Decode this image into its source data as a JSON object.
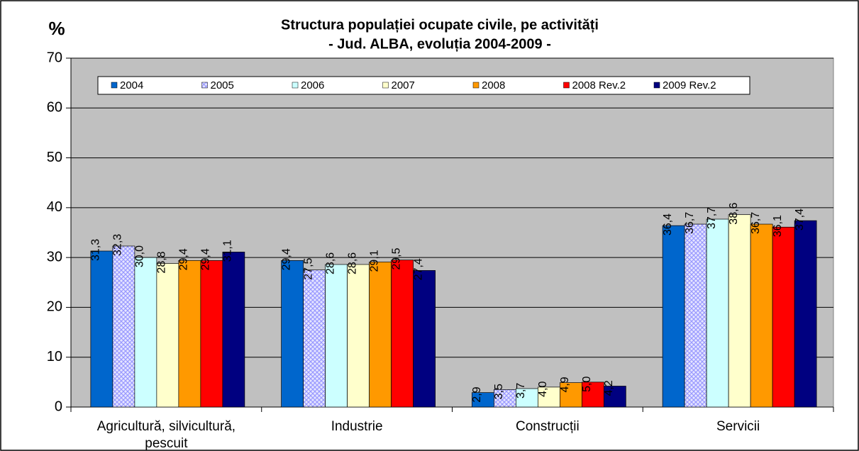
{
  "chart_data": {
    "type": "bar",
    "title": "Structura populației ocupate civile, pe activități",
    "subtitle": "- Jud. ALBA, evoluția 2004-2009 -",
    "y_label": "%",
    "categories": [
      "Agricultură, silvicultură, pescuit",
      "Industrie",
      "Construcții",
      "Servicii"
    ],
    "series": [
      {
        "name": "2004",
        "color": "#0066cc",
        "values": [
          31.3,
          29.4,
          2.9,
          36.4
        ],
        "value_labels": [
          "31,3",
          "29,4",
          "2,9",
          "36,4"
        ]
      },
      {
        "name": "2005",
        "color": "#9999ff",
        "hatch": true,
        "values": [
          32.3,
          27.5,
          3.5,
          36.7
        ],
        "value_labels": [
          "32,3",
          "27,5",
          "3,5",
          "36,7"
        ]
      },
      {
        "name": "2006",
        "color": "#ccffff",
        "values": [
          30.0,
          28.6,
          3.7,
          37.7
        ],
        "value_labels": [
          "30,0",
          "28,6",
          "3,7",
          "37,7"
        ]
      },
      {
        "name": "2007",
        "color": "#ffffcc",
        "values": [
          28.8,
          28.6,
          4.0,
          38.6
        ],
        "value_labels": [
          "28,8",
          "28,6",
          "4,0",
          "38,6"
        ]
      },
      {
        "name": "2008",
        "color": "#ff9900",
        "values": [
          29.4,
          29.1,
          4.9,
          36.7
        ],
        "value_labels": [
          "29,4",
          "29,1",
          "4,9",
          "36,7"
        ]
      },
      {
        "name": "2008 Rev.2",
        "color": "#ff0000",
        "values": [
          29.4,
          29.5,
          5.0,
          36.1
        ],
        "value_labels": [
          "29,4",
          "29,5",
          "5,0",
          "36,1"
        ]
      },
      {
        "name": "2009 Rev.2",
        "color": "#000080",
        "values": [
          31.1,
          27.4,
          4.2,
          37.4
        ],
        "value_labels": [
          "31,1",
          "27,4",
          "4,2",
          "37,4"
        ]
      }
    ],
    "ylim": [
      0,
      70
    ],
    "yticks": [
      0,
      10,
      20,
      30,
      40,
      50,
      60,
      70
    ],
    "grid": true,
    "legend": "top"
  }
}
